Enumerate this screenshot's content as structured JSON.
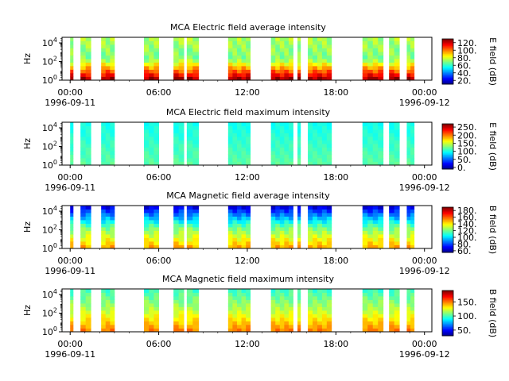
{
  "chart_data": [
    {
      "type": "heatmap",
      "title": "MCA  Electric field average intensity",
      "ylabel": "Hz",
      "y_ticks": [
        "10^0",
        "10^2",
        "10^4"
      ],
      "y_log_range": [
        0,
        4.6
      ],
      "x_range_hours": [
        -0.55,
        24.5
      ],
      "x_ticks": [
        "00:00",
        "06:00",
        "12:00",
        "18:00",
        "00:00"
      ],
      "x_dates": [
        "1996-09-11",
        "1996-09-12"
      ],
      "colorbar": {
        "label": "E field (dB)",
        "ticks": [
          "20.",
          "40.",
          "60.",
          "80.",
          "100.",
          "120."
        ],
        "tick_values": [
          20,
          40,
          60,
          80,
          100,
          120
        ],
        "range": [
          10,
          130
        ]
      },
      "segments_hours": [
        [
          0.0,
          0.2
        ],
        [
          0.7,
          1.4
        ],
        [
          2.1,
          3.0
        ],
        [
          5.0,
          6.0
        ],
        [
          7.0,
          7.7
        ],
        [
          7.9,
          8.7
        ],
        [
          10.7,
          12.2
        ],
        [
          13.6,
          15.1
        ],
        [
          15.4,
          15.6
        ],
        [
          16.1,
          17.7
        ],
        [
          19.8,
          21.2
        ],
        [
          21.6,
          22.3
        ],
        [
          22.8,
          23.3
        ]
      ],
      "intensity_profile": {
        "low_freq": 125,
        "mid_freq": 70,
        "high_freq": 75
      }
    },
    {
      "type": "heatmap",
      "title": "MCA  Electric field maximum intensity",
      "ylabel": "Hz",
      "y_ticks": [
        "10^0",
        "10^2",
        "10^4"
      ],
      "y_log_range": [
        0,
        4.6
      ],
      "x_range_hours": [
        -0.55,
        24.5
      ],
      "x_ticks": [
        "00:00",
        "06:00",
        "12:00",
        "18:00",
        "00:00"
      ],
      "x_dates": [
        "1996-09-11",
        "1996-09-12"
      ],
      "colorbar": {
        "label": "E field (dB)",
        "ticks": [
          "0.",
          "50.",
          "100.",
          "150.",
          "200.",
          "250."
        ],
        "tick_values": [
          0,
          50,
          100,
          150,
          200,
          250
        ],
        "range": [
          -10,
          270
        ]
      },
      "segments_hours": [
        [
          0.0,
          0.2
        ],
        [
          0.7,
          1.4
        ],
        [
          2.1,
          3.0
        ],
        [
          5.0,
          6.0
        ],
        [
          7.0,
          7.7
        ],
        [
          7.9,
          8.7
        ],
        [
          10.7,
          12.2
        ],
        [
          13.6,
          15.1
        ],
        [
          15.4,
          15.6
        ],
        [
          16.1,
          17.7
        ],
        [
          19.8,
          21.2
        ],
        [
          21.6,
          22.3
        ],
        [
          22.8,
          23.3
        ]
      ],
      "intensity_profile": {
        "low_freq": 120,
        "mid_freq": 110,
        "high_freq": 100
      }
    },
    {
      "type": "heatmap",
      "title": "MCA  Magnetic field average intensity",
      "ylabel": "Hz",
      "y_ticks": [
        "10^0",
        "10^2",
        "10^4"
      ],
      "y_log_range": [
        0,
        4.6
      ],
      "x_range_hours": [
        -0.55,
        24.5
      ],
      "x_ticks": [
        "00:00",
        "06:00",
        "12:00",
        "18:00",
        "00:00"
      ],
      "x_dates": [
        "1996-09-11",
        "1996-09-12"
      ],
      "colorbar": {
        "label": "B field (dB)",
        "ticks": [
          "60.",
          "80.",
          "100.",
          "120.",
          "140.",
          "160.",
          "180."
        ],
        "tick_values": [
          60,
          80,
          100,
          120,
          140,
          160,
          180
        ],
        "range": [
          55,
          190
        ]
      },
      "segments_hours": [
        [
          0.0,
          0.2
        ],
        [
          0.7,
          1.4
        ],
        [
          2.1,
          3.0
        ],
        [
          5.0,
          6.0
        ],
        [
          7.0,
          7.7
        ],
        [
          7.9,
          8.7
        ],
        [
          10.7,
          12.2
        ],
        [
          13.6,
          15.1
        ],
        [
          15.4,
          15.6
        ],
        [
          16.1,
          17.7
        ],
        [
          19.8,
          21.2
        ],
        [
          21.6,
          22.3
        ],
        [
          22.8,
          23.3
        ]
      ],
      "intensity_profile": {
        "low_freq": 150,
        "mid_freq": 120,
        "high_freq": 70
      }
    },
    {
      "type": "heatmap",
      "title": "MCA  Magnetic field maximum intensity",
      "ylabel": "Hz",
      "y_ticks": [
        "10^0",
        "10^2",
        "10^4"
      ],
      "y_log_range": [
        0,
        4.6
      ],
      "x_range_hours": [
        -0.55,
        24.5
      ],
      "x_ticks": [
        "00:00",
        "06:00",
        "12:00",
        "18:00",
        "00:00"
      ],
      "x_dates": [
        "1996-09-11",
        "1996-09-12"
      ],
      "colorbar": {
        "label": "B field (dB)",
        "ticks": [
          "50.",
          "100.",
          "150."
        ],
        "tick_values": [
          50,
          100,
          150
        ],
        "range": [
          30,
          190
        ]
      },
      "segments_hours": [
        [
          0.0,
          0.2
        ],
        [
          0.7,
          1.4
        ],
        [
          2.1,
          3.0
        ],
        [
          5.0,
          6.0
        ],
        [
          7.0,
          7.7
        ],
        [
          7.9,
          8.7
        ],
        [
          10.7,
          12.2
        ],
        [
          13.6,
          15.1
        ],
        [
          15.4,
          15.6
        ],
        [
          16.1,
          17.7
        ],
        [
          19.8,
          21.2
        ],
        [
          21.6,
          22.3
        ],
        [
          22.8,
          23.3
        ]
      ],
      "intensity_profile": {
        "low_freq": 150,
        "mid_freq": 120,
        "high_freq": 100
      }
    }
  ]
}
